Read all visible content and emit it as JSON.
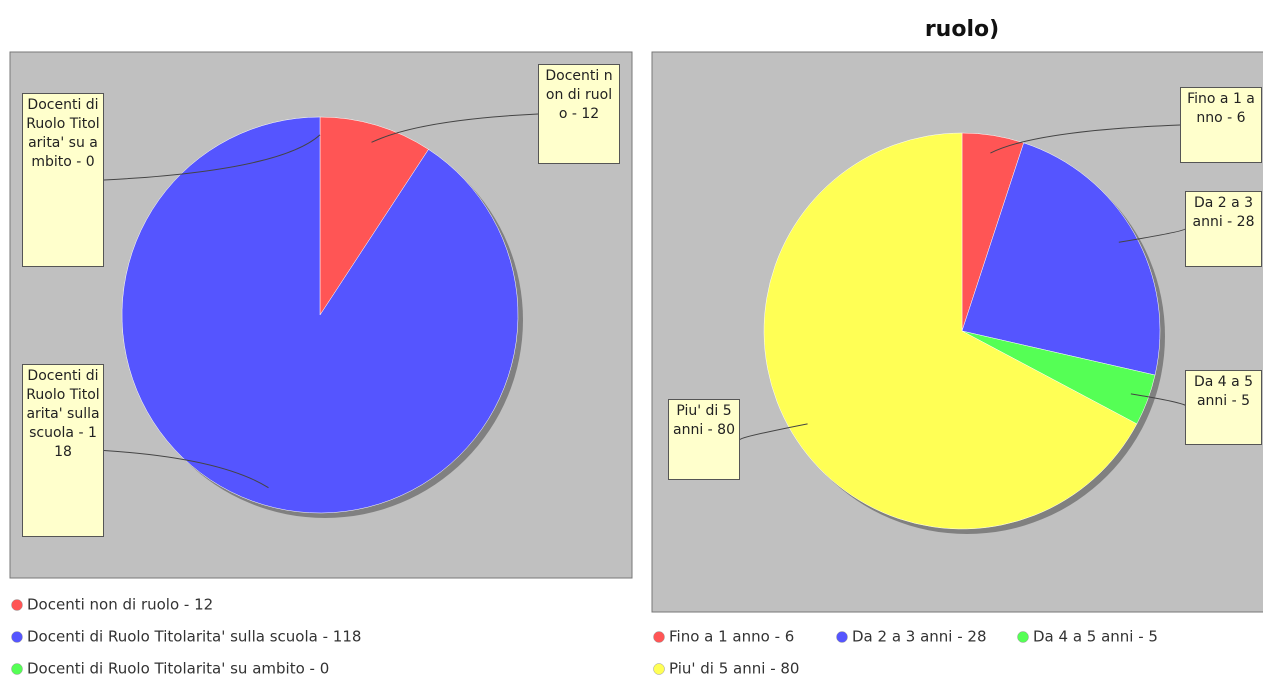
{
  "chart_data": [
    {
      "type": "pie",
      "values": [
        12,
        118,
        0
      ],
      "value_labels": [
        "Docenti non di ruolo - 12",
        "Docenti di Ruolo Titolarita' sulla scuola - 118",
        "Docenti di Ruolo Titolarita' su ambito - 0"
      ],
      "colors": [
        "#ff5555",
        "#5555ff",
        "#55ff55"
      ]
    },
    {
      "type": "pie",
      "title": "ruolo)",
      "values": [
        6,
        28,
        5,
        80
      ],
      "value_labels": [
        "Fino a 1 anno - 6",
        "Da 2 a 3 anni - 28",
        "Da 4 a 5 anni - 5",
        "Piu' di 5 anni - 80"
      ],
      "colors": [
        "#ff5555",
        "#5555ff",
        "#55ff55",
        "#ffff55"
      ]
    }
  ]
}
